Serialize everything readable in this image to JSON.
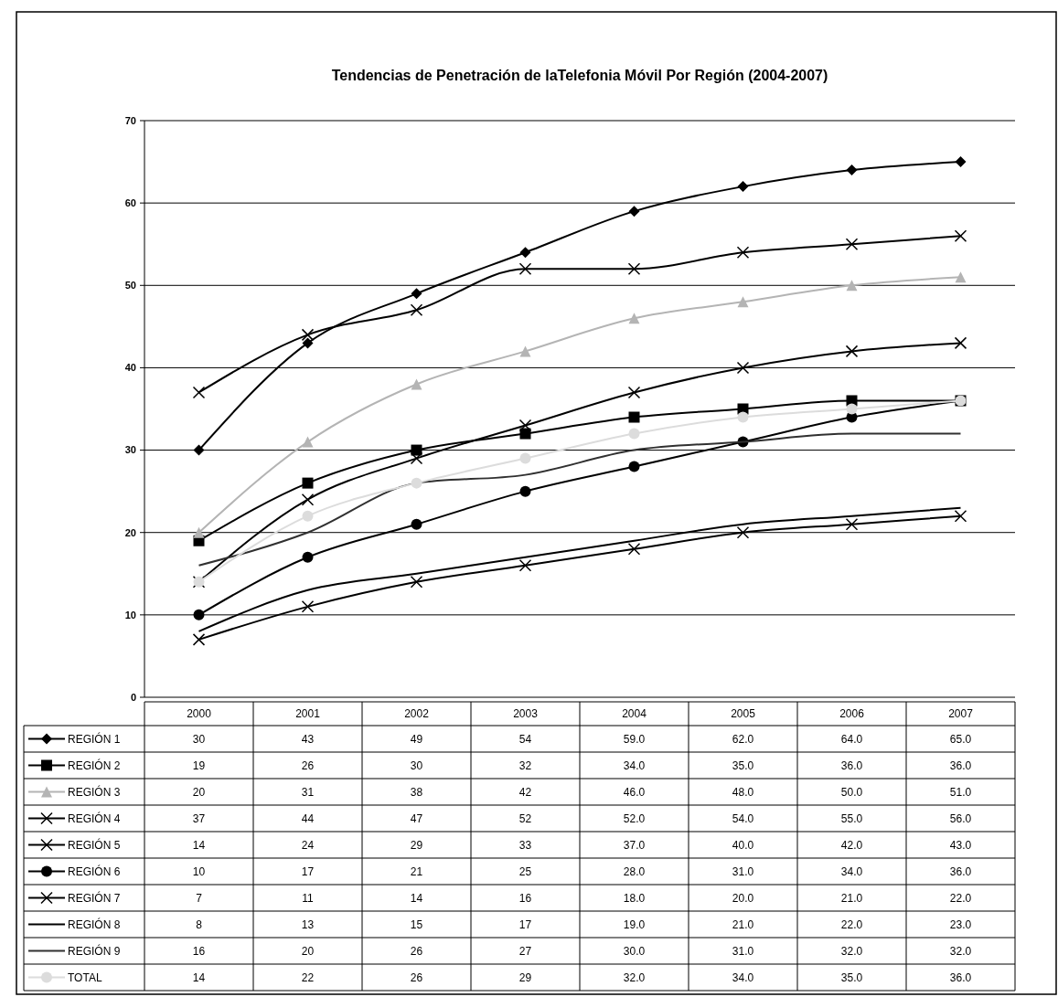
{
  "chart_data": {
    "type": "line",
    "title": "Tendencias de Penetración de laTelefonia Móvil Por Región (2004-2007)",
    "categories": [
      "2000",
      "2001",
      "2002",
      "2003",
      "2004",
      "2005",
      "2006",
      "2007"
    ],
    "ylim": [
      0,
      70
    ],
    "yticks": [
      0,
      10,
      20,
      30,
      40,
      50,
      60,
      70
    ],
    "grid": "y",
    "legend": "bottom",
    "series": [
      {
        "name": "REGIÓN 1",
        "color": "#000000",
        "marker": "diamond",
        "values": [
          30,
          43,
          49,
          54,
          59,
          62,
          64,
          65
        ],
        "value_labels": [
          "30",
          "43",
          "49",
          "54",
          "59.0",
          "62.0",
          "64.0",
          "65.0"
        ]
      },
      {
        "name": "REGIÓN 2",
        "color": "#000000",
        "marker": "square",
        "values": [
          19,
          26,
          30,
          32,
          34,
          35,
          36,
          36
        ],
        "value_labels": [
          "19",
          "26",
          "30",
          "32",
          "34.0",
          "35.0",
          "36.0",
          "36.0"
        ]
      },
      {
        "name": "REGIÓN 3",
        "color": "#b4b4b4",
        "marker": "triangle",
        "values": [
          20,
          31,
          38,
          42,
          46,
          48,
          50,
          51
        ],
        "value_labels": [
          "20",
          "31",
          "38",
          "42",
          "46.0",
          "48.0",
          "50.0",
          "51.0"
        ]
      },
      {
        "name": "REGIÓN 4",
        "color": "#000000",
        "marker": "cross",
        "values": [
          37,
          44,
          47,
          52,
          52,
          54,
          55,
          56
        ],
        "value_labels": [
          "37",
          "44",
          "47",
          "52",
          "52.0",
          "54.0",
          "55.0",
          "56.0"
        ]
      },
      {
        "name": "REGIÓN 5",
        "color": "#000000",
        "marker": "cross",
        "values": [
          14,
          24,
          29,
          33,
          37,
          40,
          42,
          43
        ],
        "value_labels": [
          "14",
          "24",
          "29",
          "33",
          "37.0",
          "40.0",
          "42.0",
          "43.0"
        ]
      },
      {
        "name": "REGIÓN 6",
        "color": "#000000",
        "marker": "circle",
        "values": [
          10,
          17,
          21,
          25,
          28,
          31,
          34,
          36
        ],
        "value_labels": [
          "10",
          "17",
          "21",
          "25",
          "28.0",
          "31.0",
          "34.0",
          "36.0"
        ]
      },
      {
        "name": "REGIÓN 7",
        "color": "#000000",
        "marker": "cross",
        "values": [
          7,
          11,
          14,
          16,
          18,
          20,
          21,
          22
        ],
        "value_labels": [
          "7",
          "11",
          "14",
          "16",
          "18.0",
          "20.0",
          "21.0",
          "22.0"
        ]
      },
      {
        "name": "REGIÓN 8",
        "color": "#000000",
        "marker": "none",
        "values": [
          8,
          13,
          15,
          17,
          19,
          21,
          22,
          23
        ],
        "value_labels": [
          "8",
          "13",
          "15",
          "17",
          "19.0",
          "21.0",
          "22.0",
          "23.0"
        ]
      },
      {
        "name": "REGIÓN 9",
        "color": "#303030",
        "marker": "none",
        "values": [
          16,
          20,
          26,
          27,
          30,
          31,
          32,
          32
        ],
        "value_labels": [
          "16",
          "20",
          "26",
          "27",
          "30.0",
          "31.0",
          "32.0",
          "32.0"
        ]
      },
      {
        "name": "TOTAL",
        "color": "#dcdcdc",
        "marker": "circle",
        "values": [
          14,
          22,
          26,
          29,
          32,
          34,
          35,
          36
        ],
        "value_labels": [
          "14",
          "22",
          "26",
          "29",
          "32.0",
          "34.0",
          "35.0",
          "36.0"
        ]
      }
    ]
  }
}
